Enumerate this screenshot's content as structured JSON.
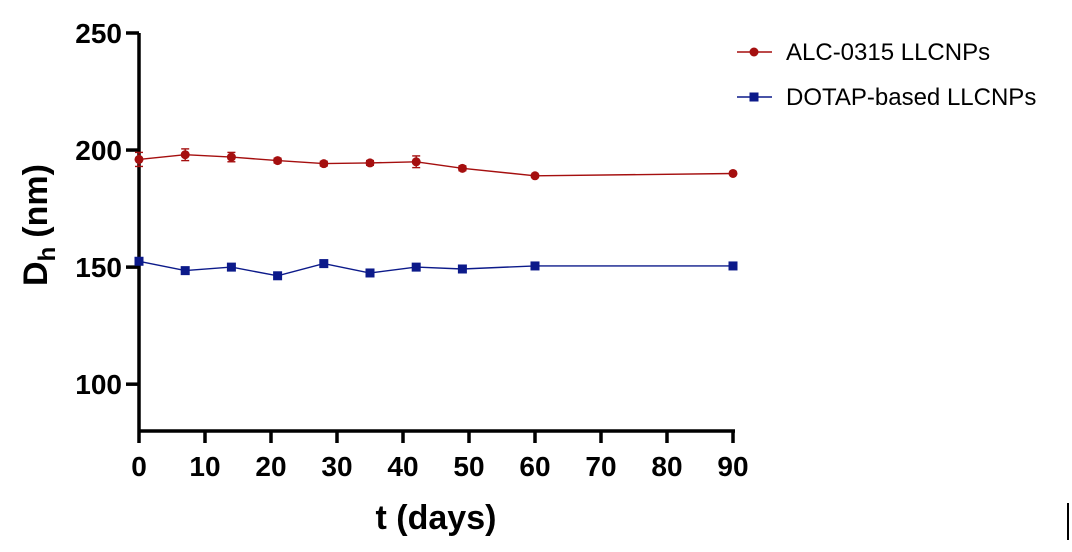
{
  "chart_data": {
    "type": "line",
    "xlabel": "t (days)",
    "ylabel_main": "D",
    "ylabel_sub": "h",
    "ylabel_unit": "(nm)",
    "xlim": [
      0,
      90
    ],
    "ylim": [
      80,
      250
    ],
    "xticks": [
      "0",
      "10",
      "20",
      "30",
      "40",
      "50",
      "60",
      "70",
      "80",
      "90"
    ],
    "yticks": [
      "100",
      "150",
      "200",
      "250"
    ],
    "grid": false,
    "legend_position": "top-right",
    "x": [
      0,
      7,
      14,
      21,
      28,
      35,
      42,
      49,
      60,
      90
    ],
    "series": [
      {
        "name": "ALC-0315 LLCNPs",
        "color": "#a50f0f",
        "marker": "circle",
        "values": [
          196,
          198,
          197,
          195.5,
          194.2,
          194.5,
          195,
          192.2,
          189,
          190
        ],
        "errors": [
          3,
          2.5,
          2,
          1,
          1,
          1,
          2.5,
          1,
          0.5,
          0.5
        ]
      },
      {
        "name": "DOTAP-based LLCNPs",
        "color": "#0c1a8a",
        "marker": "square",
        "values": [
          152.5,
          148.5,
          150,
          146.3,
          151.5,
          147.5,
          150,
          149.2,
          150.5,
          150.5
        ],
        "errors": [
          1,
          1,
          0.5,
          0.5,
          1.5,
          0.5,
          0.5,
          0.5,
          0.5,
          0.5
        ]
      }
    ]
  }
}
